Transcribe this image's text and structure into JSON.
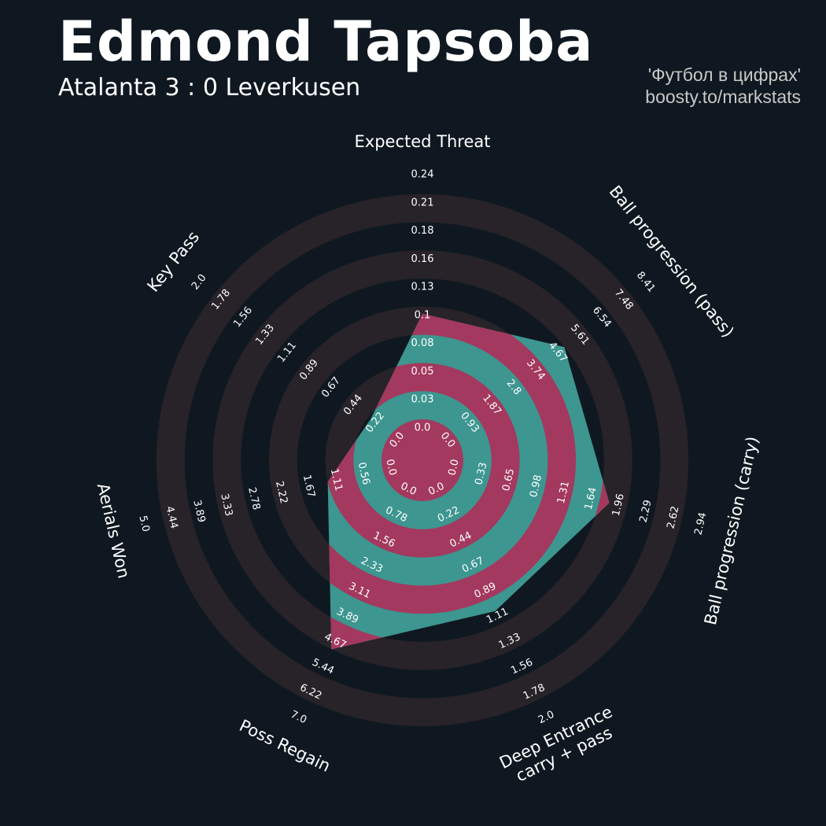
{
  "header": {
    "title": "Edmond Tapsoba",
    "subtitle": "Atalanta 3 : 0 Leverkusen",
    "credit_line1": "'Футбол в цифрах'",
    "credit_line2": "boosty.to/markstats"
  },
  "colors": {
    "background": "#0f1820",
    "ring_band": "#272329",
    "fill_teal": "#3d9690",
    "fill_crimson": "#a3395e",
    "text": "#ffffff"
  },
  "chart_data": {
    "type": "radar",
    "params": [
      {
        "label": [
          "Expected Threat"
        ],
        "min": 0.0,
        "max": 0.24,
        "value": 0.1,
        "ticks": [
          "0.0",
          "0.03",
          "0.05",
          "0.08",
          "0.1",
          "0.13",
          "0.16",
          "0.18",
          "0.21",
          "0.24"
        ]
      },
      {
        "label": [
          "Ball progression (pass)"
        ],
        "min": 0.0,
        "max": 8.41,
        "value": 4.67,
        "ticks": [
          "0.0",
          "0.93",
          "1.87",
          "2.8",
          "3.74",
          "4.67",
          "5.61",
          "6.54",
          "7.48",
          "8.41"
        ]
      },
      {
        "label": [
          "Ball progression (carry)"
        ],
        "min": 0.0,
        "max": 2.94,
        "value": 1.75,
        "ticks": [
          "0.0",
          "0.33",
          "0.65",
          "0.98",
          "1.31",
          "1.64",
          "1.96",
          "2.29",
          "2.62",
          "2.94"
        ]
      },
      {
        "label": [
          "Deep Entrance",
          "carry + pass"
        ],
        "min": 0.0,
        "max": 2.0,
        "value": 1.0,
        "ticks": [
          "0.0",
          "0.22",
          "0.44",
          "0.67",
          "0.89",
          "1.11",
          "1.33",
          "1.56",
          "1.78",
          "2.0"
        ]
      },
      {
        "label": [
          "Poss Regain"
        ],
        "min": 0.0,
        "max": 7.0,
        "value": 4.67,
        "ticks": [
          "0.0",
          "0.78",
          "1.56",
          "2.33",
          "3.11",
          "3.89",
          "4.67",
          "5.44",
          "6.22",
          "7.0"
        ]
      },
      {
        "label": [
          "Aerials Won"
        ],
        "min": 0.0,
        "max": 5.0,
        "value": 1.11,
        "ticks": [
          "0.0",
          "0.56",
          "1.11",
          "1.67",
          "2.22",
          "2.78",
          "3.33",
          "3.89",
          "4.44",
          "5.0"
        ]
      },
      {
        "label": [
          "Key Pass"
        ],
        "min": 0.0,
        "max": 2.0,
        "value": 0.2,
        "ticks": [
          "0.0",
          "0.22",
          "0.44",
          "0.67",
          "0.89",
          "1.11",
          "1.33",
          "1.56",
          "1.78",
          "2.0"
        ]
      }
    ]
  }
}
